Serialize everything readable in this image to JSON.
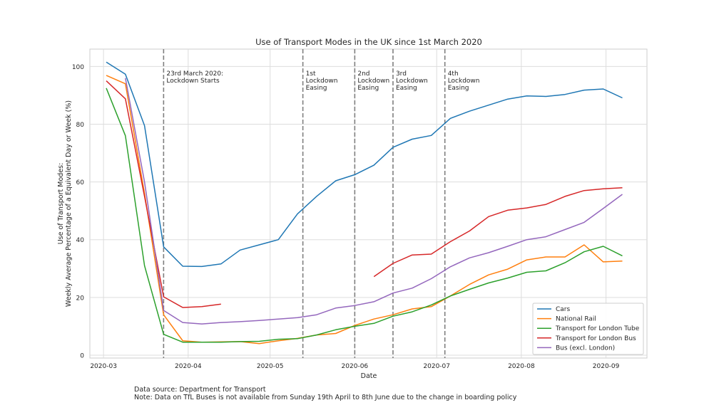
{
  "chart_data": {
    "type": "line",
    "title": "Use of Transport Modes in the UK since 1st March 2020",
    "xlabel": "Date",
    "ylabel_lines": [
      "Use of Transport Modes:",
      "Weekly Average Percentage of a Equivalent Day or Week (%)"
    ],
    "x_ticks": [
      "2020-03",
      "2020-04",
      "2020-05",
      "2020-06",
      "2020-07",
      "2020-08",
      "2020-09"
    ],
    "y_ticks": [
      0,
      20,
      40,
      60,
      80,
      100
    ],
    "xlim": [
      "2020-02-25",
      "2020-09-16"
    ],
    "ylim": [
      -1,
      106
    ],
    "grid": true,
    "legend_position": "bottom-right",
    "x": [
      "2020-03-02",
      "2020-03-09",
      "2020-03-16",
      "2020-03-23",
      "2020-03-30",
      "2020-04-06",
      "2020-04-13",
      "2020-04-20",
      "2020-04-27",
      "2020-05-04",
      "2020-05-11",
      "2020-05-18",
      "2020-05-25",
      "2020-06-01",
      "2020-06-08",
      "2020-06-15",
      "2020-06-22",
      "2020-06-29",
      "2020-07-06",
      "2020-07-13",
      "2020-07-20",
      "2020-07-27",
      "2020-08-03",
      "2020-08-10",
      "2020-08-17",
      "2020-08-24",
      "2020-08-31",
      "2020-09-07"
    ],
    "series": [
      {
        "name": "Cars",
        "color": "#1f77b4",
        "values": [
          101.5,
          97.3,
          79.5,
          37.5,
          30.8,
          30.7,
          31.6,
          36.4,
          38.2,
          40.0,
          48.9,
          55.0,
          60.4,
          62.5,
          65.8,
          72.0,
          74.8,
          76.1,
          82.0,
          84.5,
          86.6,
          88.7,
          89.8,
          89.6,
          90.3,
          91.8,
          92.2,
          89.1
        ]
      },
      {
        "name": "National Rail",
        "color": "#ff7f0e",
        "values": [
          96.9,
          94.0,
          56.0,
          14.0,
          5.0,
          4.5,
          4.6,
          4.7,
          4.0,
          5.0,
          5.8,
          7.0,
          7.5,
          10.3,
          12.5,
          14.0,
          16.0,
          16.8,
          20.5,
          24.5,
          27.8,
          29.8,
          33.0,
          34.0,
          34.0,
          38.2,
          32.3,
          32.6
        ]
      },
      {
        "name": "Transport for London Tube",
        "color": "#2ca02c",
        "values": [
          92.5,
          76.0,
          31.0,
          7.2,
          4.5,
          4.5,
          4.5,
          4.7,
          4.8,
          5.5,
          5.7,
          7.0,
          8.8,
          10.0,
          11.0,
          13.5,
          15.0,
          17.4,
          20.5,
          22.8,
          25.0,
          26.7,
          28.7,
          29.2,
          32.0,
          35.8,
          37.7,
          34.4
        ]
      },
      {
        "name": "Transport for London Bus",
        "color": "#d62728",
        "values": [
          95.0,
          88.8,
          55.0,
          20.2,
          16.5,
          16.8,
          17.7,
          null,
          null,
          null,
          null,
          null,
          null,
          null,
          27.2,
          31.8,
          34.7,
          35.0,
          39.3,
          43.0,
          48.0,
          50.2,
          51.0,
          52.2,
          55.0,
          57.0,
          57.6,
          58.0
        ]
      },
      {
        "name": "Bus (excl. London)",
        "color": "#9467bd",
        "values": [
          null,
          96.0,
          60.0,
          15.5,
          11.3,
          10.8,
          11.3,
          11.6,
          12.0,
          12.5,
          13.0,
          14.0,
          16.3,
          17.2,
          18.5,
          21.5,
          23.2,
          26.5,
          30.6,
          33.7,
          35.5,
          37.7,
          40.0,
          41.0,
          43.5,
          46.0,
          50.8,
          55.7
        ]
      }
    ],
    "events": [
      {
        "date": "2020-03-23",
        "label_lines": [
          "23rd March 2020:",
          "Lockdown Starts"
        ]
      },
      {
        "date": "2020-05-13",
        "label_lines": [
          "1st",
          "Lockdown",
          "Easing"
        ]
      },
      {
        "date": "2020-06-01",
        "label_lines": [
          "2nd",
          "Lockdown",
          "Easing"
        ]
      },
      {
        "date": "2020-06-15",
        "label_lines": [
          "3rd",
          "Lockdown",
          "Easing"
        ]
      },
      {
        "date": "2020-07-04",
        "label_lines": [
          "4th",
          "Lockdown",
          "Easing"
        ]
      }
    ]
  },
  "footnote": {
    "source": "Data source: Department for Transport",
    "note": "Note: Data on TfL Buses is not available from Sunday 19th April to 8th June due to the change in boarding policy"
  }
}
